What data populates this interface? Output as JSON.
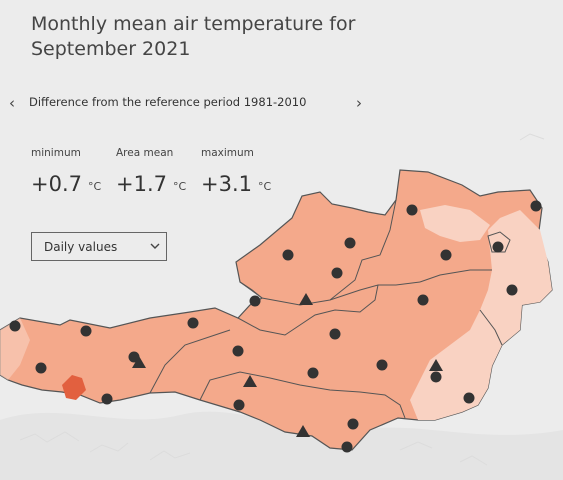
{
  "title": "Monthly mean air temperature for September 2021",
  "title_lines": [
    "Monthly mean air temperature for",
    "September 2021"
  ],
  "nav": {
    "label": "Difference from the reference period 1981-2010",
    "prev_icon": "chevron-left-icon",
    "next_icon": "chevron-right-icon"
  },
  "stats": {
    "minimum": {
      "label": "minimum",
      "value": "+0.7",
      "unit": "°C"
    },
    "area_mean": {
      "label": "Area mean",
      "value": "+1.7",
      "unit": "°C"
    },
    "maximum": {
      "label": "maximum",
      "value": "+3.1",
      "unit": "°C"
    }
  },
  "dropdown": {
    "selected": "Daily values",
    "icon": "chevron-down-icon"
  },
  "colors": {
    "background": "#ececec",
    "map_main": "#f4a98b",
    "map_light": "#f9d2c2",
    "map_dark": "#e2603f",
    "border": "#555555",
    "station": "#333333"
  },
  "legend_symbols": [
    "circle-station-icon",
    "triangle-station-icon"
  ]
}
